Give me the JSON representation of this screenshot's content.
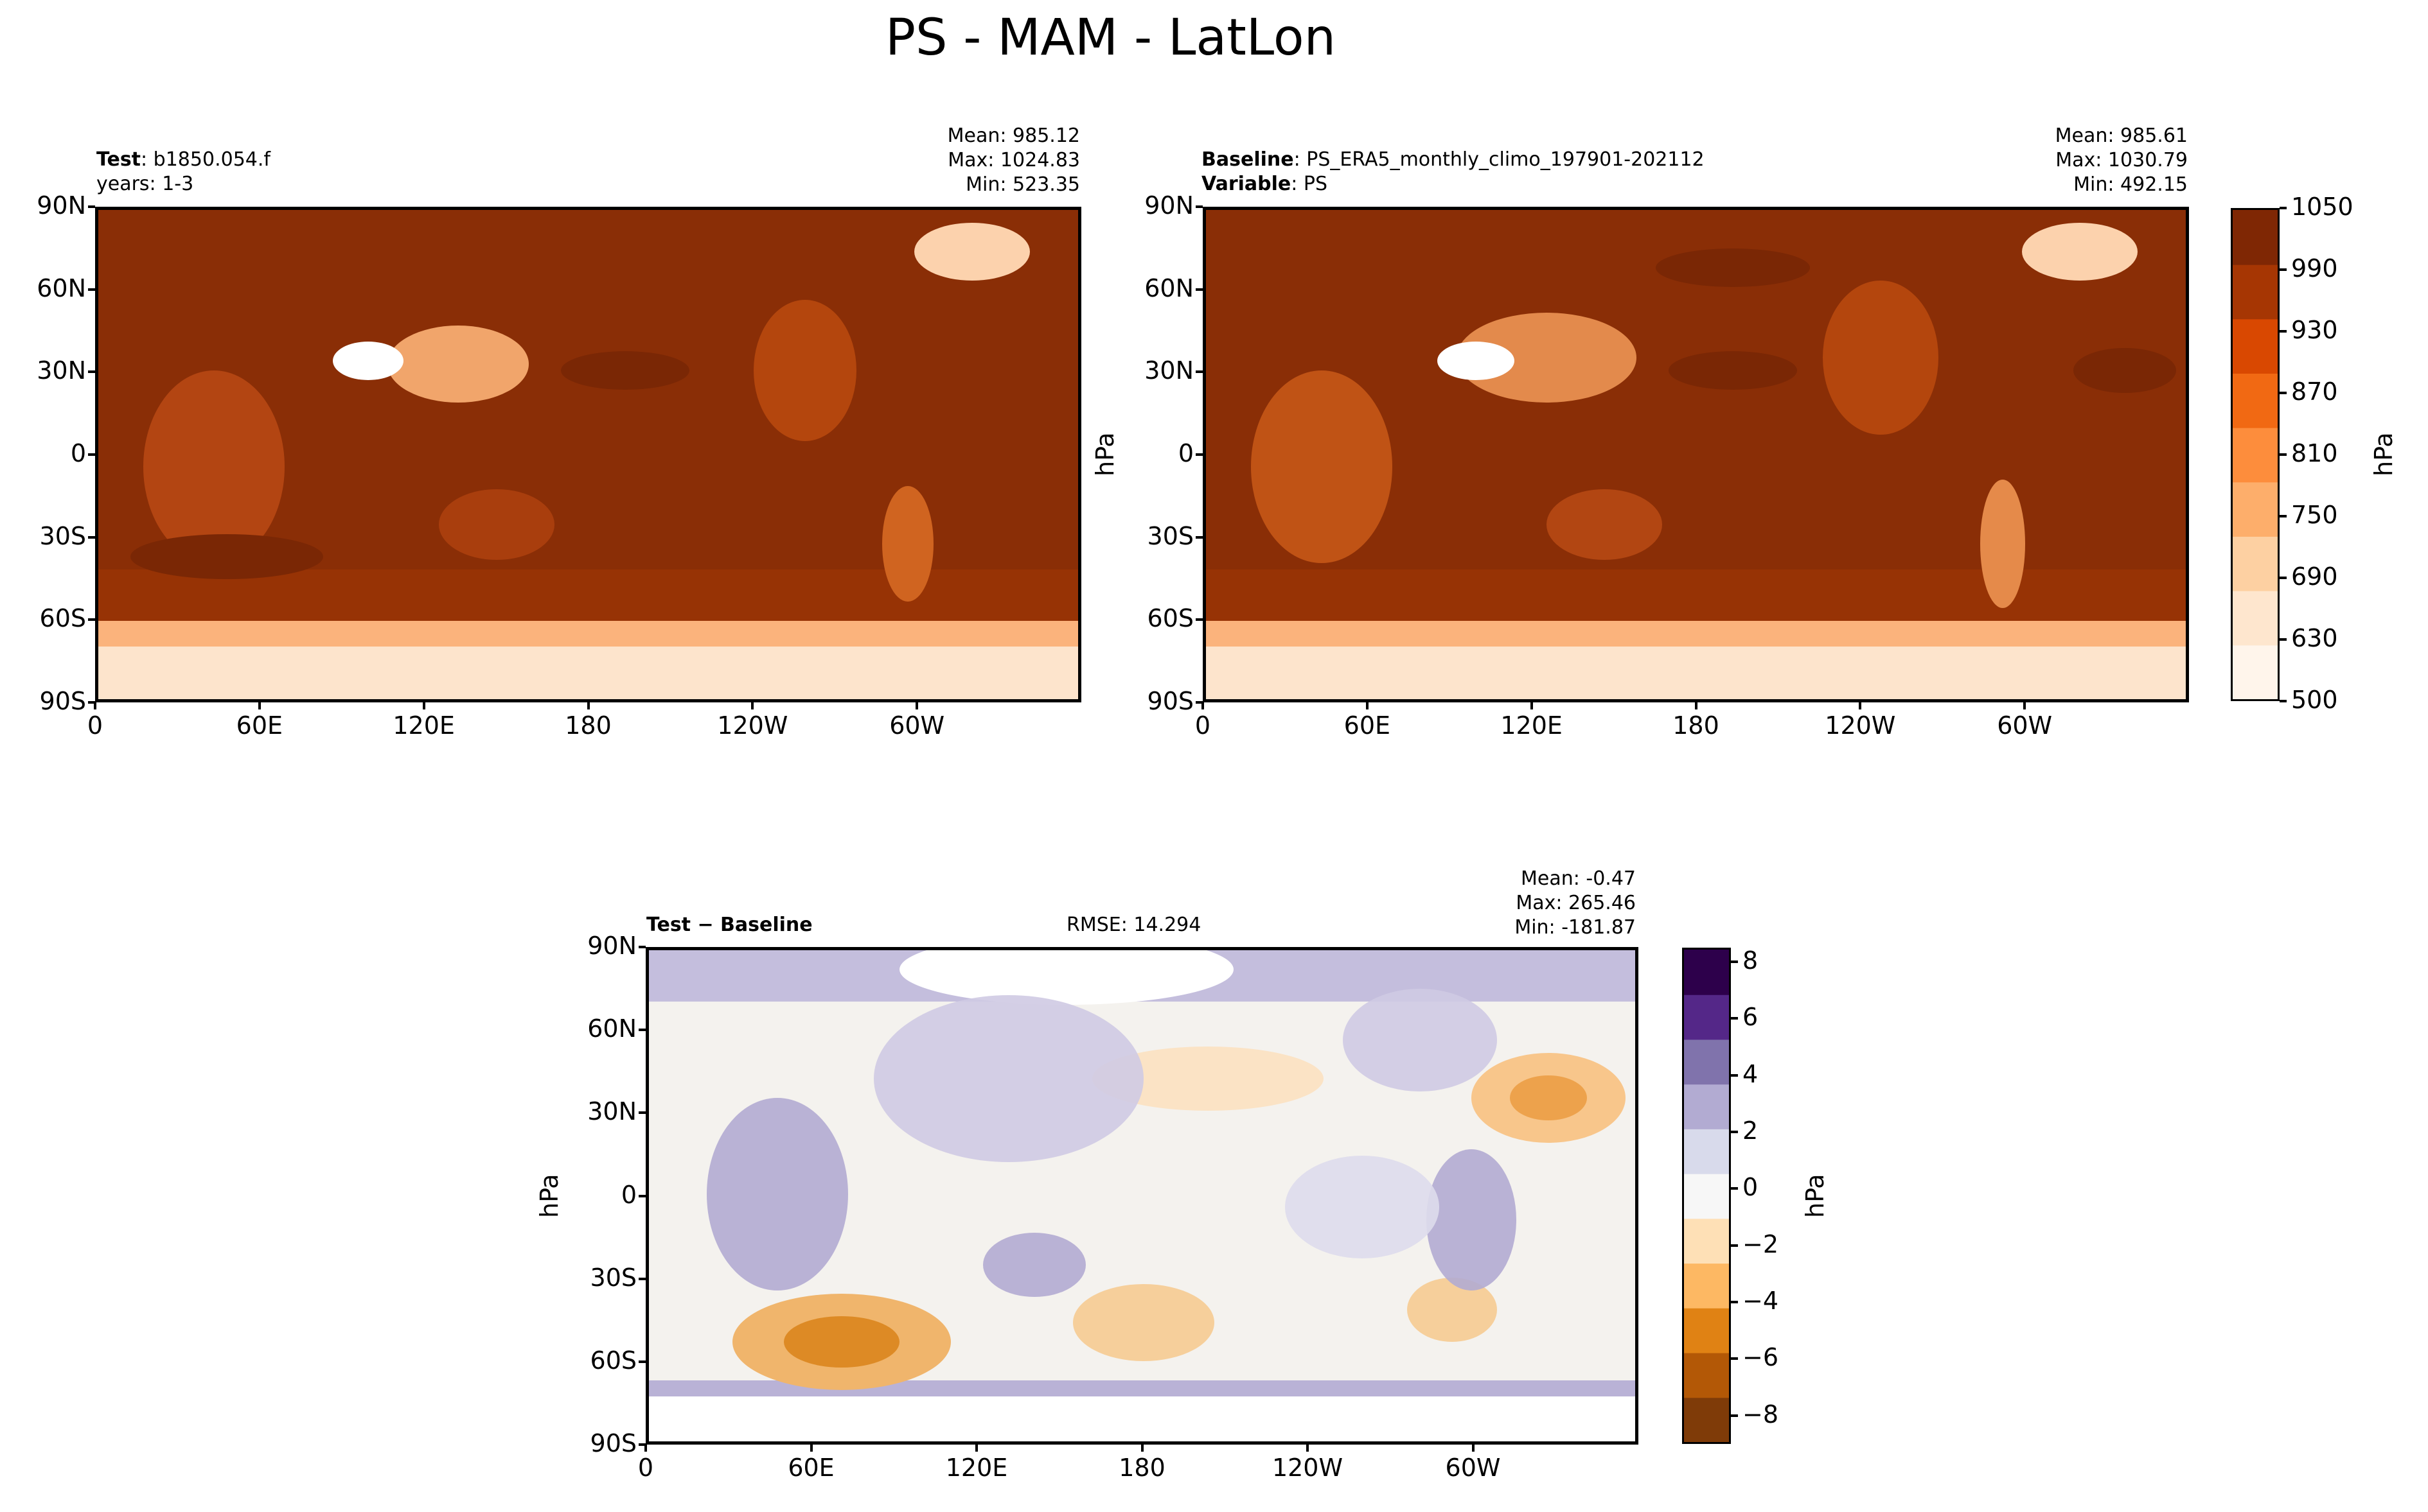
{
  "figure": {
    "title": "PS - MAM - LatLon"
  },
  "panels": {
    "test": {
      "label_bold": "Test",
      "label_rest": ": b1850.054.f",
      "line2": "years: 1-3",
      "mean": "Mean: 985.12",
      "max": "Max: 1024.83",
      "min": "Min: 523.35"
    },
    "baseline": {
      "label_bold": "Baseline",
      "label_rest": ": PS_ERA5_monthly_climo_197901-202112",
      "line2_bold": "Variable",
      "line2_rest": ": PS",
      "mean": "Mean: 985.61",
      "max": "Max: 1030.79",
      "min": "Min: 492.15",
      "ylabel": "hPa"
    },
    "diff": {
      "label_bold": "Test − Baseline",
      "rmse": "RMSE: 14.294",
      "mean": "Mean: -0.47",
      "max": "Max: 265.46",
      "min": "Min: -181.87",
      "ylabel": "hPa"
    }
  },
  "axes": {
    "lat_ticks": [
      "90N",
      "60N",
      "30N",
      "0",
      "30S",
      "60S",
      "90S"
    ],
    "lon_ticks": [
      "0",
      "60E",
      "120E",
      "180",
      "120W",
      "60W"
    ]
  },
  "colorbars": {
    "main": {
      "label": "hPa",
      "ticks": [
        "1050",
        "990",
        "930",
        "870",
        "810",
        "750",
        "690",
        "630",
        "500"
      ],
      "colors": [
        "#fff5eb",
        "#fee6ce",
        "#fdd0a2",
        "#fdae6b",
        "#fd8d3c",
        "#f16913",
        "#d94801",
        "#a63603",
        "#7f2704"
      ]
    },
    "diff": {
      "label": "hPa",
      "ticks": [
        "8",
        "6",
        "4",
        "2",
        "0",
        "−2",
        "−4",
        "−6",
        "−8"
      ],
      "colors": [
        "#7f3b08",
        "#b35806",
        "#e08214",
        "#fdb863",
        "#fee0b6",
        "#f7f7f7",
        "#d8daeb",
        "#b2abd2",
        "#8073ac",
        "#542788",
        "#2d004b"
      ]
    }
  },
  "chart_data": [
    {
      "type": "heatmap",
      "title": "Test: b1850.054.f years: 1-3",
      "variable": "PS",
      "units": "hPa",
      "xlabel": "",
      "ylabel": "",
      "x_ticks": [
        "0",
        "60E",
        "120E",
        "180",
        "120W",
        "60W"
      ],
      "y_ticks": [
        "90N",
        "60N",
        "30N",
        "0",
        "30S",
        "60S",
        "90S"
      ],
      "color_range": [
        500,
        1050
      ],
      "stats": {
        "mean": 985.12,
        "max": 1024.83,
        "min": 523.35
      }
    },
    {
      "type": "heatmap",
      "title": "Baseline: PS_ERA5_monthly_climo_197901-202112 Variable: PS",
      "variable": "PS",
      "units": "hPa",
      "xlabel": "",
      "ylabel": "hPa",
      "x_ticks": [
        "0",
        "60E",
        "120E",
        "180",
        "120W",
        "60W"
      ],
      "y_ticks": [
        "90N",
        "60N",
        "30N",
        "0",
        "30S",
        "60S",
        "90S"
      ],
      "color_range": [
        500,
        1050
      ],
      "colorbar_ticks": [
        1050,
        990,
        930,
        870,
        810,
        750,
        690,
        630,
        500
      ],
      "stats": {
        "mean": 985.61,
        "max": 1030.79,
        "min": 492.15
      }
    },
    {
      "type": "heatmap",
      "title": "Test − Baseline",
      "units": "hPa",
      "xlabel": "",
      "ylabel": "hPa",
      "x_ticks": [
        "0",
        "60E",
        "120E",
        "180",
        "120W",
        "60W"
      ],
      "y_ticks": [
        "90N",
        "60N",
        "30N",
        "0",
        "30S",
        "60S",
        "90S"
      ],
      "color_range": [
        -9,
        8.5
      ],
      "colorbar_ticks": [
        8,
        6,
        4,
        2,
        0,
        -2,
        -4,
        -6,
        -8
      ],
      "rmse": 14.294,
      "stats": {
        "mean": -0.47,
        "max": 265.46,
        "min": -181.87
      }
    }
  ]
}
